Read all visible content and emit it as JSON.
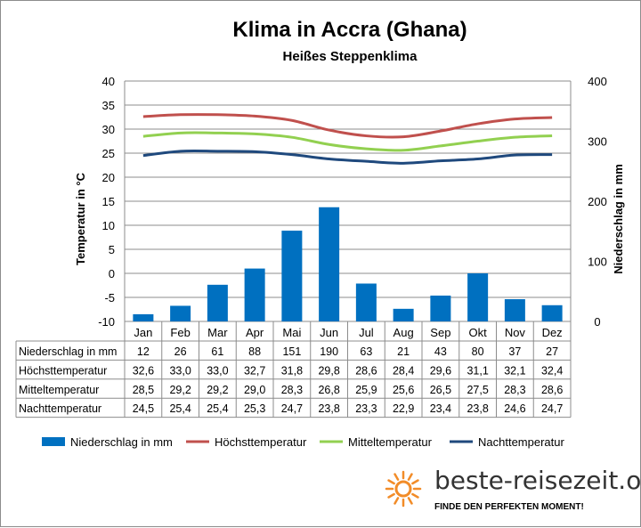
{
  "chart_data": {
    "type": "bar",
    "title": "Klima in Accra (Ghana)",
    "subtitle": "Heißes Steppenklima",
    "categories": [
      "Jan",
      "Feb",
      "Mar",
      "Apr",
      "Mai",
      "Jun",
      "Jul",
      "Aug",
      "Sep",
      "Okt",
      "Nov",
      "Dez"
    ],
    "y_left_label": "Temperatur in °C",
    "y_left_range": [
      -10,
      40
    ],
    "y_left_ticks": [
      "40",
      "35",
      "30",
      "25",
      "20",
      "15",
      "10",
      "5",
      "0",
      "-5",
      "-10"
    ],
    "y_right_label": "Niederschlag in mm",
    "y_right_range": [
      0,
      400
    ],
    "y_right_ticks": [
      "400",
      "300",
      "200",
      "100",
      "0"
    ],
    "grid": true,
    "legend_position": "bottom",
    "series": [
      {
        "name": "Niederschlag in mm",
        "kind": "bar",
        "axis": "right",
        "color": "#0070c0",
        "values": [
          12,
          26,
          61,
          88,
          151,
          190,
          63,
          21,
          43,
          80,
          37,
          27
        ]
      },
      {
        "name": "Höchsttemperatur",
        "kind": "line",
        "axis": "left",
        "color": "#c0504d",
        "values": [
          32.6,
          33.0,
          33.0,
          32.7,
          31.8,
          29.8,
          28.6,
          28.4,
          29.6,
          31.1,
          32.1,
          32.4
        ]
      },
      {
        "name": "Mitteltemperatur",
        "kind": "line",
        "axis": "left",
        "color": "#92d050",
        "values": [
          28.5,
          29.2,
          29.2,
          29.0,
          28.3,
          26.8,
          25.9,
          25.6,
          26.5,
          27.5,
          28.3,
          28.6
        ]
      },
      {
        "name": "Nachttemperatur",
        "kind": "line",
        "axis": "left",
        "color": "#1f497d",
        "values": [
          24.5,
          25.4,
          25.4,
          25.3,
          24.7,
          23.8,
          23.3,
          22.9,
          23.4,
          23.8,
          24.6,
          24.7
        ]
      }
    ],
    "table_rows": [
      {
        "label": "Niederschlag in mm",
        "cells": [
          "12",
          "26",
          "61",
          "88",
          "151",
          "190",
          "63",
          "21",
          "43",
          "80",
          "37",
          "27"
        ]
      },
      {
        "label": "Höchsttemperatur",
        "cells": [
          "32,6",
          "33,0",
          "33,0",
          "32,7",
          "31,8",
          "29,8",
          "28,6",
          "28,4",
          "29,6",
          "31,1",
          "32,1",
          "32,4"
        ]
      },
      {
        "label": "Mitteltemperatur",
        "cells": [
          "28,5",
          "29,2",
          "29,2",
          "29,0",
          "28,3",
          "26,8",
          "25,9",
          "25,6",
          "26,5",
          "27,5",
          "28,3",
          "28,6"
        ]
      },
      {
        "label": "Nachttemperatur",
        "cells": [
          "24,5",
          "25,4",
          "25,4",
          "25,3",
          "24,7",
          "23,8",
          "23,3",
          "22,9",
          "23,4",
          "23,8",
          "24,6",
          "24,7"
        ]
      }
    ]
  },
  "branding": {
    "name": "beste-reisezeit.org",
    "slogan": "FINDE DEN PERFEKTEN MOMENT!",
    "icon": "sun-icon",
    "icon_color": "#f28c28"
  }
}
